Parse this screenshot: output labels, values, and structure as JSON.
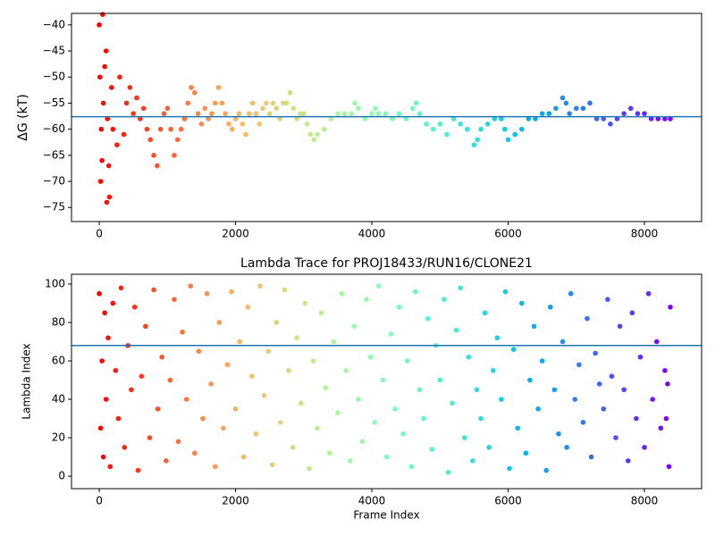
{
  "chart_data": [
    {
      "type": "scatter",
      "ylabel": "ΔG (kT)",
      "colormap": "rainbow_r",
      "hline": -57.6,
      "hline_color": "#1f77b4",
      "xlim": [
        -407,
        8839
      ],
      "ylim": [
        -77.7,
        -37.8
      ],
      "xticks": [
        0,
        2000,
        4000,
        6000,
        8000
      ],
      "yticks": [
        {
          "value": -75,
          "label": "−75"
        },
        {
          "value": -70,
          "label": "−70"
        },
        {
          "value": -65,
          "label": "−65"
        },
        {
          "value": -60,
          "label": "−60"
        },
        {
          "value": -55,
          "label": "−55"
        },
        {
          "value": -50,
          "label": "−50"
        },
        {
          "value": -45,
          "label": "−45"
        },
        {
          "value": -40,
          "label": "−40"
        }
      ],
      "x": [
        0,
        10,
        20,
        30,
        40,
        50,
        60,
        80,
        100,
        110,
        120,
        140,
        150,
        180,
        200,
        260,
        300,
        360,
        400,
        450,
        500,
        550,
        600,
        650,
        700,
        750,
        800,
        850,
        900,
        950,
        1000,
        1050,
        1100,
        1150,
        1200,
        1250,
        1300,
        1350,
        1400,
        1450,
        1500,
        1550,
        1600,
        1650,
        1700,
        1750,
        1800,
        1850,
        1900,
        1950,
        2000,
        2050,
        2100,
        2150,
        2200,
        2250,
        2300,
        2350,
        2400,
        2450,
        2500,
        2550,
        2600,
        2650,
        2700,
        2750,
        2800,
        2850,
        2900,
        2950,
        3000,
        3050,
        3100,
        3150,
        3200,
        3300,
        3400,
        3500,
        3600,
        3700,
        3750,
        3800,
        3900,
        4000,
        4050,
        4100,
        4200,
        4300,
        4400,
        4500,
        4600,
        4650,
        4700,
        4800,
        4900,
        5000,
        5100,
        5200,
        5300,
        5400,
        5500,
        5550,
        5600,
        5700,
        5800,
        5900,
        5950,
        6000,
        6100,
        6200,
        6300,
        6400,
        6500,
        6600,
        6700,
        6800,
        6850,
        6900,
        7000,
        7100,
        7200,
        7300,
        7400,
        7500,
        7600,
        7700,
        7800,
        7900,
        8000,
        8100,
        8200,
        8300,
        8380
      ],
      "values": [
        -40,
        -50,
        -70,
        -60,
        -66,
        -38,
        -55,
        -48,
        -45,
        -74,
        -58,
        -67,
        -73,
        -52,
        -60,
        -63,
        -50,
        -61,
        -55,
        -52,
        -57,
        -54,
        -58,
        -56,
        -60,
        -62,
        -65,
        -67,
        -60,
        -57,
        -56,
        -60,
        -65,
        -62,
        -60,
        -58,
        -55,
        -52,
        -53,
        -57,
        -59,
        -56,
        -58,
        -57,
        -55,
        -52,
        -55,
        -57,
        -59,
        -60,
        -58,
        -57,
        -59,
        -61,
        -57,
        -55,
        -57,
        -59,
        -56,
        -55,
        -57,
        -55,
        -56,
        -58,
        -55,
        -55,
        -53,
        -56,
        -58,
        -57,
        -57,
        -59,
        -61,
        -62,
        -61,
        -60,
        -58,
        -57,
        -57,
        -57,
        -55,
        -56,
        -58,
        -57,
        -56,
        -57,
        -57,
        -58,
        -57,
        -58,
        -56,
        -55,
        -57,
        -59,
        -60,
        -59,
        -61,
        -58,
        -59,
        -60,
        -63,
        -62,
        -60,
        -59,
        -58,
        -58,
        -60,
        -62,
        -61,
        -60,
        -58,
        -58,
        -57,
        -57,
        -56,
        -54,
        -55,
        -57,
        -56,
        -56,
        -55,
        -58,
        -58,
        -59,
        -58,
        -57,
        -56,
        -57,
        -57,
        -58,
        -58,
        -58,
        -58
      ]
    },
    {
      "type": "scatter",
      "title": "Lambda Trace for PROJ18433/RUN16/CLONE21",
      "xlabel": "Frame Index",
      "ylabel": "Lambda Index",
      "colormap": "rainbow_r",
      "hline": 68,
      "hline_color": "#1f77b4",
      "xlim": [
        -407,
        8839
      ],
      "ylim": [
        -6.5,
        105.1
      ],
      "xticks": [
        0,
        2000,
        4000,
        6000,
        8000
      ],
      "yticks": [
        0,
        20,
        40,
        60,
        80,
        100
      ],
      "x": [
        0,
        20,
        40,
        60,
        80,
        100,
        130,
        160,
        200,
        240,
        280,
        320,
        370,
        420,
        470,
        520,
        570,
        620,
        680,
        740,
        800,
        860,
        920,
        980,
        1040,
        1100,
        1160,
        1220,
        1280,
        1340,
        1400,
        1460,
        1520,
        1580,
        1640,
        1700,
        1760,
        1820,
        1880,
        1940,
        2000,
        2060,
        2120,
        2180,
        2240,
        2300,
        2360,
        2420,
        2480,
        2540,
        2600,
        2660,
        2720,
        2780,
        2840,
        2900,
        2960,
        3020,
        3080,
        3140,
        3200,
        3260,
        3320,
        3380,
        3440,
        3500,
        3560,
        3620,
        3680,
        3740,
        3800,
        3860,
        3920,
        3980,
        4040,
        4100,
        4160,
        4220,
        4280,
        4340,
        4400,
        4460,
        4520,
        4580,
        4640,
        4700,
        4760,
        4820,
        4880,
        4940,
        5000,
        5060,
        5120,
        5180,
        5240,
        5300,
        5360,
        5420,
        5480,
        5540,
        5600,
        5660,
        5720,
        5780,
        5840,
        5900,
        5960,
        6020,
        6080,
        6140,
        6200,
        6260,
        6320,
        6380,
        6440,
        6500,
        6560,
        6620,
        6680,
        6740,
        6800,
        6860,
        6920,
        6980,
        7040,
        7100,
        7160,
        7220,
        7280,
        7340,
        7400,
        7460,
        7520,
        7580,
        7640,
        7700,
        7760,
        7820,
        7880,
        7940,
        8000,
        8060,
        8120,
        8180,
        8240,
        8300,
        8360,
        8380,
        8340,
        8320
      ],
      "values": [
        95,
        25,
        60,
        10,
        85,
        40,
        72,
        5,
        90,
        55,
        30,
        98,
        15,
        68,
        45,
        88,
        3,
        52,
        78,
        20,
        97,
        35,
        62,
        8,
        50,
        92,
        18,
        75,
        40,
        99,
        12,
        65,
        30,
        95,
        48,
        5,
        80,
        25,
        58,
        96,
        35,
        70,
        10,
        88,
        52,
        22,
        99,
        42,
        65,
        6,
        80,
        28,
        97,
        55,
        15,
        72,
        38,
        90,
        4,
        60,
        25,
        85,
        46,
        12,
        70,
        33,
        95,
        55,
        8,
        78,
        40,
        18,
        92,
        62,
        28,
        99,
        50,
        10,
        74,
        35,
        88,
        22,
        60,
        5,
        96,
        45,
        30,
        82,
        14,
        68,
        50,
        92,
        2,
        38,
        76,
        98,
        20,
        62,
        8,
        45,
        30,
        85,
        15,
        55,
        72,
        40,
        96,
        4,
        66,
        25,
        90,
        12,
        50,
        78,
        35,
        60,
        3,
        88,
        45,
        22,
        70,
        15,
        95,
        40,
        58,
        28,
        82,
        10,
        64,
        48,
        35,
        92,
        52,
        20,
        78,
        45,
        8,
        85,
        30,
        62,
        15,
        95,
        40,
        70,
        25,
        55,
        5,
        88,
        48,
        30
      ]
    }
  ]
}
